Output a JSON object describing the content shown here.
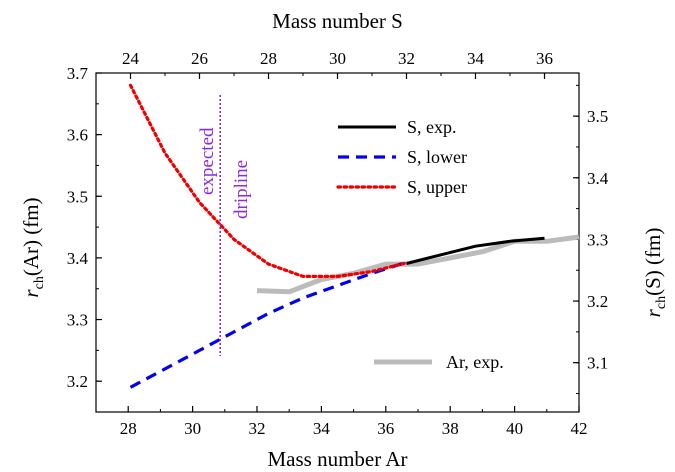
{
  "chart_data": {
    "type": "line",
    "x_bottom": {
      "label": "Mass number Ar",
      "range": [
        27,
        42
      ],
      "ticks": [
        28,
        30,
        32,
        34,
        36,
        38,
        40,
        42
      ]
    },
    "x_top": {
      "label": "Mass number S",
      "range": [
        23,
        37
      ],
      "ticks": [
        24,
        26,
        28,
        30,
        32,
        34,
        36
      ]
    },
    "y_left": {
      "label_main": "r",
      "label_sub": "ch",
      "label_rest": "(Ar)  (fm)",
      "range": [
        3.15,
        3.7
      ],
      "ticks": [
        "3.2",
        "3.3",
        "3.4",
        "3.5",
        "3.6",
        "3.7"
      ]
    },
    "y_right": {
      "label_main": "r",
      "label_sub": "ch",
      "label_rest": "(S)  (fm)",
      "range": [
        3.02,
        3.57
      ],
      "ticks": [
        "3.1",
        "3.2",
        "3.3",
        "3.4",
        "3.5"
      ]
    },
    "series": [
      {
        "name": "S, exp.",
        "axes": "S",
        "color": "#000000",
        "style": "solid",
        "x": [
          32,
          33,
          34,
          35,
          36
        ],
        "y": [
          3.261,
          3.275,
          3.289,
          3.297,
          3.302
        ]
      },
      {
        "name": "S, lower",
        "axes": "S",
        "color": "#0000ee",
        "style": "dashed",
        "x": [
          24,
          25,
          26,
          27,
          28,
          29,
          30,
          31,
          32
        ],
        "y": [
          3.06,
          3.09,
          3.12,
          3.15,
          3.18,
          3.205,
          3.225,
          3.245,
          3.263
        ]
      },
      {
        "name": "S, upper",
        "axes": "S",
        "color": "#ee0000",
        "style": "dotted",
        "x": [
          24,
          25,
          26,
          27,
          28,
          29,
          30,
          31,
          32
        ],
        "y": [
          3.55,
          3.44,
          3.36,
          3.3,
          3.26,
          3.24,
          3.24,
          3.248,
          3.262
        ]
      },
      {
        "name": "Ar, exp.",
        "axes": "Ar",
        "color": "#bbbbbb",
        "style": "solid",
        "x": [
          32,
          33,
          34,
          35,
          36,
          37,
          38,
          39,
          40,
          41,
          42
        ],
        "y": [
          3.347,
          3.345,
          3.365,
          3.375,
          3.39,
          3.39,
          3.4,
          3.41,
          3.427,
          3.427,
          3.434
        ]
      }
    ],
    "legend": {
      "placement": "top-right",
      "entries": [
        "S, exp.",
        "S, lower",
        "S, upper"
      ]
    },
    "legend2": {
      "placement": "bottom-right",
      "entries": [
        "Ar, exp."
      ]
    },
    "annotation": {
      "lines": [
        "expected",
        "dripline"
      ],
      "x_s": 26.6,
      "color": "#8a2be2"
    },
    "grid": false
  }
}
